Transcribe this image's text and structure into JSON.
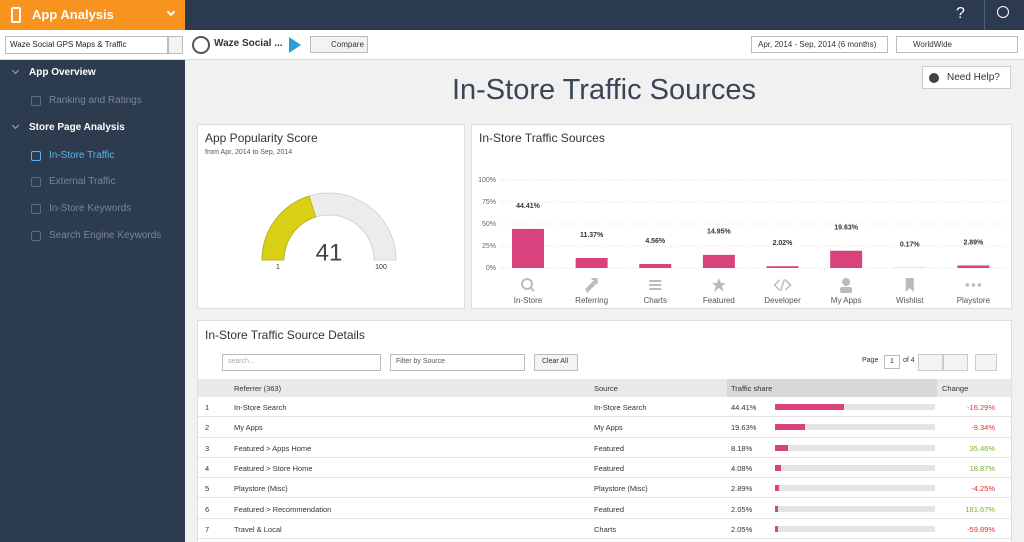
{
  "header": {
    "app_menu": "App Analysis",
    "help": "?"
  },
  "toolbar": {
    "search": "Waze Social GPS Maps & Traffic",
    "app_name": "Waze Social ...",
    "compare": "Compare",
    "date_range": "Apr, 2014 - Sep, 2014 (6 months)",
    "country": "WorldWide"
  },
  "sidebar": {
    "sections": [
      {
        "title": "App Overview",
        "items": [
          "Ranking and Ratings"
        ]
      },
      {
        "title": "Store Page Analysis",
        "items": [
          "In-Store Traffic",
          "External Traffic",
          "In-Store Keywords",
          "Search Engine Keywords"
        ],
        "active": 0
      }
    ]
  },
  "page_title": "In-Store Traffic Sources",
  "need_help": "Need Help?",
  "popularity": {
    "title": "App Popularity Score",
    "subtitle": "from Apr, 2014 to Sep, 2014",
    "value": 41,
    "min": 1,
    "max": 100,
    "color": "#d9cf15"
  },
  "chart_data": {
    "type": "bar",
    "title": "In-Store Traffic Sources",
    "categories": [
      "In-Store",
      "Referring",
      "Charts",
      "Featured",
      "Developer",
      "My Apps",
      "Wishlist",
      "Playstore"
    ],
    "values": [
      44.41,
      11.37,
      4.56,
      14.95,
      2.02,
      19.63,
      0.17,
      2.89
    ],
    "value_labels": [
      "44.41%",
      "11.37%",
      "4.56%",
      "14.95%",
      "2.02%",
      "19.63%",
      "0.17%",
      "2.89%"
    ],
    "color": "#d9437d",
    "ylim": [
      0,
      100
    ],
    "yticks": [
      {
        "value": 0,
        "label": "0%"
      },
      {
        "value": 25,
        "label": "25%"
      },
      {
        "value": 50,
        "label": "50%"
      },
      {
        "value": 75,
        "label": "75%"
      },
      {
        "value": 100,
        "label": "100%"
      }
    ],
    "grid": true
  },
  "details": {
    "title": "In-Store Traffic Source Details",
    "search_placeholder": "search...",
    "filter": "Filter by Source",
    "clear": "Clear All",
    "page_label": "Page",
    "page": "1",
    "page_of": "of 4",
    "columns": [
      "Referrer (363)",
      "Source",
      "Traffic share",
      "Change"
    ],
    "rows": [
      {
        "index": 1,
        "referrer": "In-Store Search",
        "source": "In-Store Search",
        "share": 44.41,
        "share_label": "44.41%",
        "change": "-16.29%"
      },
      {
        "index": 2,
        "referrer": "My Apps",
        "source": "My Apps",
        "share": 19.63,
        "share_label": "19.63%",
        "change": "-9.34%"
      },
      {
        "index": 3,
        "referrer": "Featured > Apps Home",
        "source": "Featured",
        "share": 8.18,
        "share_label": "8.18%",
        "change": "35.46%"
      },
      {
        "index": 4,
        "referrer": "Featured > Store Home",
        "source": "Featured",
        "share": 4.08,
        "share_label": "4.08%",
        "change": "18.87%"
      },
      {
        "index": 5,
        "referrer": "Playstore (Misc)",
        "source": "Playstore (Misc)",
        "share": 2.89,
        "share_label": "2.89%",
        "change": "-4.25%"
      },
      {
        "index": 6,
        "referrer": "Featured > Recommendation",
        "source": "Featured",
        "share": 2.05,
        "share_label": "2.05%",
        "change": "181.67%"
      },
      {
        "index": 7,
        "referrer": "Travel & Local",
        "source": "Charts",
        "share": 2.05,
        "share_label": "2.05%",
        "change": "-59.89%"
      }
    ]
  }
}
